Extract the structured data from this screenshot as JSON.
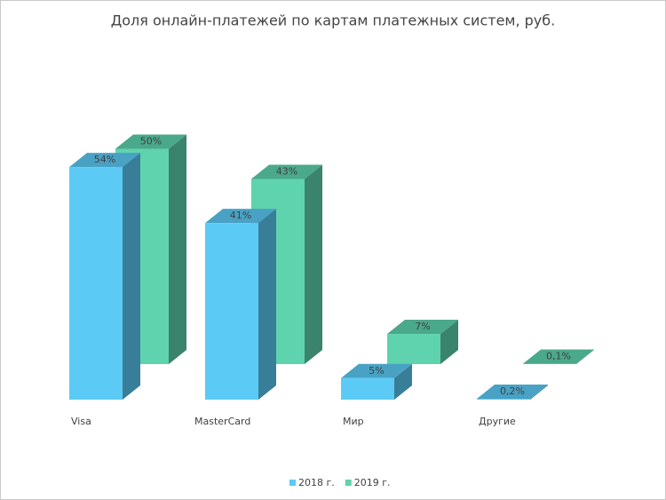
{
  "chart_data": {
    "type": "bar3d",
    "title": "Доля онлайн-платежей по картам платежных систем, руб.",
    "categories": [
      "Visa",
      "MasterCard",
      "Мир",
      "Другие"
    ],
    "series": [
      {
        "name": "2018 г.",
        "color": "#5bcbf5",
        "values": [
          54,
          41,
          5,
          0.2
        ],
        "value_labels": [
          "54%",
          "41%",
          "5%",
          "0,2%"
        ]
      },
      {
        "name": "2019 г.",
        "color": "#5ed3ae",
        "values": [
          50,
          43,
          7,
          0.1
        ],
        "value_labels": [
          "50%",
          "43%",
          "7%",
          "0,1%"
        ]
      }
    ]
  }
}
